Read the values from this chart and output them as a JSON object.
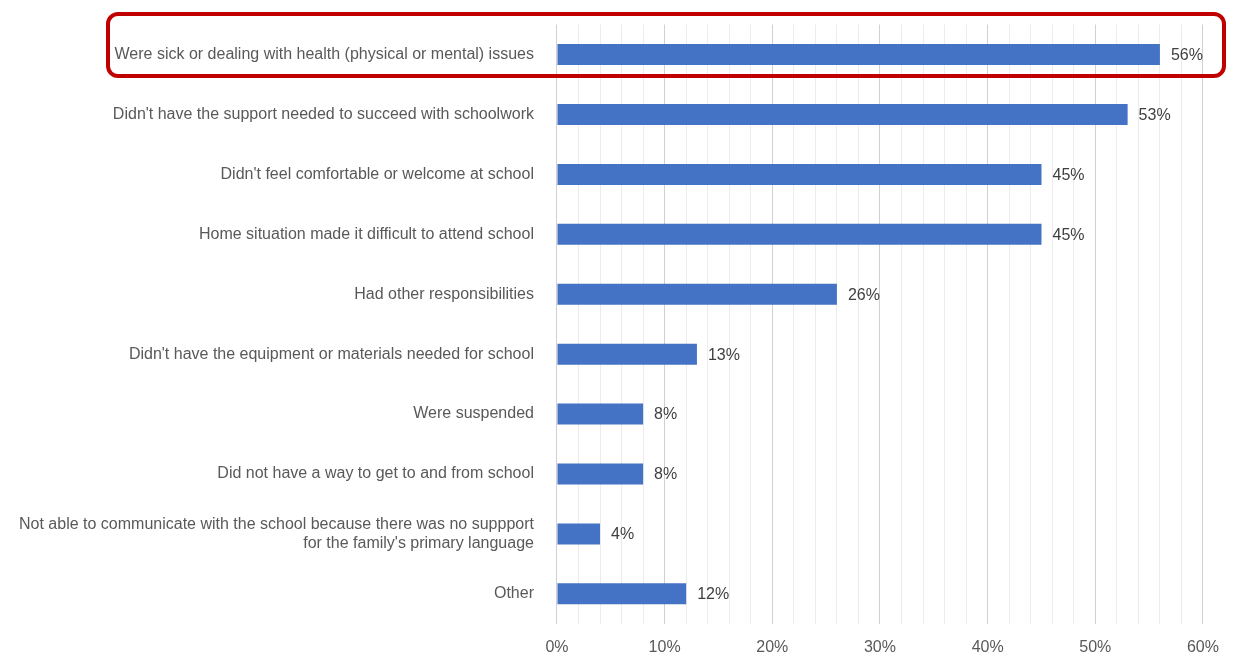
{
  "chart_data": {
    "type": "bar",
    "orientation": "horizontal",
    "categories": [
      "Were sick or dealing with health (physical or mental) issues",
      "Didn't have the support needed to succeed with schoolwork",
      "Didn't feel comfortable or welcome at school",
      "Home situation made it difficult to attend school",
      "Had other responsibilities",
      "Didn't have the equipment or materials needed for school",
      "Were suspended",
      "Did not have a way to get to and from school",
      "Not able to communicate with the school because there was no suppport\nfor the family's primary language",
      "Other"
    ],
    "values": [
      56,
      53,
      45,
      45,
      26,
      13,
      8,
      8,
      4,
      12
    ],
    "value_labels": [
      "56%",
      "53%",
      "45%",
      "45%",
      "26%",
      "13%",
      "8%",
      "8%",
      "4%",
      "12%"
    ],
    "color": "#4472c4",
    "xlim": [
      0,
      60
    ],
    "xticks": [
      {
        "value": 0,
        "label": "0%"
      },
      {
        "value": 2,
        "label": null
      },
      {
        "value": 4,
        "label": null
      },
      {
        "value": 6,
        "label": null
      },
      {
        "value": 8,
        "label": null
      },
      {
        "value": 10,
        "label": "10%"
      },
      {
        "value": 12,
        "label": null
      },
      {
        "value": 14,
        "label": null
      },
      {
        "value": 16,
        "label": null
      },
      {
        "value": 18,
        "label": null
      },
      {
        "value": 20,
        "label": "20%"
      },
      {
        "value": 22,
        "label": null
      },
      {
        "value": 24,
        "label": null
      },
      {
        "value": 26,
        "label": null
      },
      {
        "value": 28,
        "label": null
      },
      {
        "value": 30,
        "label": "30%"
      },
      {
        "value": 32,
        "label": null
      },
      {
        "value": 34,
        "label": null
      },
      {
        "value": 36,
        "label": null
      },
      {
        "value": 38,
        "label": null
      },
      {
        "value": 40,
        "label": "40%"
      },
      {
        "value": 42,
        "label": null
      },
      {
        "value": 44,
        "label": null
      },
      {
        "value": 46,
        "label": null
      },
      {
        "value": 48,
        "label": null
      },
      {
        "value": 50,
        "label": "50%"
      },
      {
        "value": 52,
        "label": null
      },
      {
        "value": 54,
        "label": null
      },
      {
        "value": 56,
        "label": null
      },
      {
        "value": 58,
        "label": null
      },
      {
        "value": 60,
        "label": "60%"
      }
    ],
    "grid": "x",
    "legend": false
  }
}
